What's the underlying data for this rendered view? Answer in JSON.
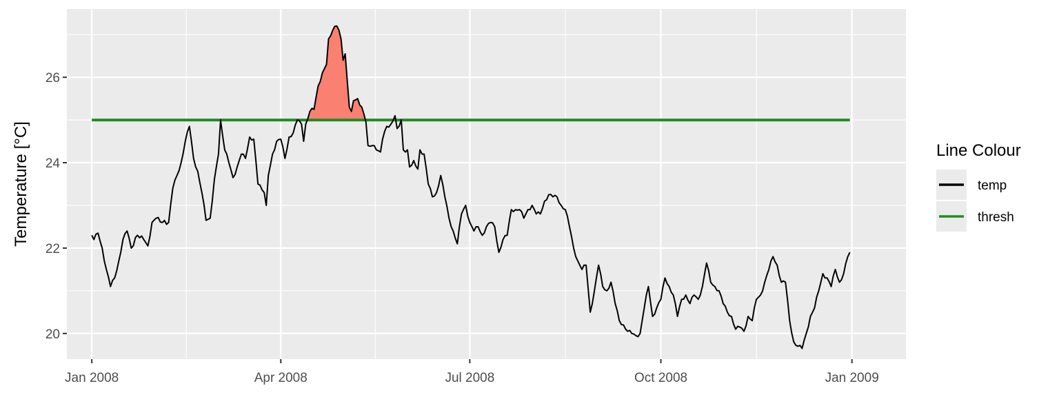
{
  "chart_data": {
    "type": "line",
    "title": "",
    "xlabel": "",
    "ylabel": "Temperature [°C]",
    "x_start": "2008-01-01",
    "x_end": "2008-12-31",
    "xlim": [
      "2007-12-20",
      "2009-01-27"
    ],
    "ylim": [
      19.4,
      27.6
    ],
    "x_ticks": [
      {
        "date": "2008-01-01",
        "label": "Jan 2008"
      },
      {
        "date": "2008-04-01",
        "label": "Apr 2008"
      },
      {
        "date": "2008-07-01",
        "label": "Jul 2008"
      },
      {
        "date": "2008-10-01",
        "label": "Oct 2008"
      },
      {
        "date": "2009-01-01",
        "label": "Jan 2009"
      }
    ],
    "y_ticks": [
      20,
      22,
      24,
      26
    ],
    "grid": true,
    "legend": {
      "title": "Line Colour",
      "position": "right"
    },
    "series": [
      {
        "name": "temp",
        "color": "#000000",
        "knots": [
          [
            "2008-01-01",
            22.3
          ],
          [
            "2008-01-02",
            22.2
          ],
          [
            "2008-01-04",
            22.35
          ],
          [
            "2008-01-06",
            22.0
          ],
          [
            "2008-01-08",
            21.5
          ],
          [
            "2008-01-10",
            21.1
          ],
          [
            "2008-01-12",
            21.3
          ],
          [
            "2008-01-14",
            21.7
          ],
          [
            "2008-01-16",
            22.2
          ],
          [
            "2008-01-18",
            22.4
          ],
          [
            "2008-01-20",
            22.0
          ],
          [
            "2008-01-23",
            22.3
          ],
          [
            "2008-01-26",
            22.2
          ],
          [
            "2008-01-28",
            22.05
          ],
          [
            "2008-01-30",
            22.6
          ],
          [
            "2008-02-01",
            22.7
          ],
          [
            "2008-02-04",
            22.6
          ],
          [
            "2008-02-07",
            22.6
          ],
          [
            "2008-02-09",
            23.4
          ],
          [
            "2008-02-11",
            23.7
          ],
          [
            "2008-02-13",
            24.0
          ],
          [
            "2008-02-15",
            24.5
          ],
          [
            "2008-02-17",
            24.85
          ],
          [
            "2008-02-19",
            24.1
          ],
          [
            "2008-02-21",
            23.8
          ],
          [
            "2008-02-23",
            23.3
          ],
          [
            "2008-02-25",
            22.65
          ],
          [
            "2008-02-27",
            22.7
          ],
          [
            "2008-02-29",
            23.6
          ],
          [
            "2008-03-02",
            24.2
          ],
          [
            "2008-03-03",
            25.0
          ],
          [
            "2008-03-05",
            24.3
          ],
          [
            "2008-03-07",
            24.0
          ],
          [
            "2008-03-09",
            23.65
          ],
          [
            "2008-03-11",
            23.9
          ],
          [
            "2008-03-13",
            24.2
          ],
          [
            "2008-03-15",
            24.1
          ],
          [
            "2008-03-17",
            24.6
          ],
          [
            "2008-03-19",
            24.55
          ],
          [
            "2008-03-21",
            23.5
          ],
          [
            "2008-03-24",
            23.3
          ],
          [
            "2008-03-25",
            23.0
          ],
          [
            "2008-03-26",
            23.7
          ],
          [
            "2008-03-28",
            24.2
          ],
          [
            "2008-03-30",
            24.5
          ],
          [
            "2008-04-01",
            24.55
          ],
          [
            "2008-04-03",
            24.1
          ],
          [
            "2008-04-05",
            24.6
          ],
          [
            "2008-04-07",
            24.7
          ],
          [
            "2008-04-09",
            25.0
          ],
          [
            "2008-04-11",
            24.9
          ],
          [
            "2008-04-12",
            24.5
          ],
          [
            "2008-04-13",
            24.9
          ],
          [
            "2008-04-15",
            25.2
          ],
          [
            "2008-04-17",
            25.25
          ],
          [
            "2008-04-19",
            25.8
          ],
          [
            "2008-04-21",
            26.1
          ],
          [
            "2008-04-23",
            26.3
          ],
          [
            "2008-04-24",
            26.9
          ],
          [
            "2008-04-26",
            27.1
          ],
          [
            "2008-04-28",
            27.2
          ],
          [
            "2008-04-29",
            27.1
          ],
          [
            "2008-04-30",
            26.9
          ],
          [
            "2008-05-01",
            26.4
          ],
          [
            "2008-05-02",
            26.55
          ],
          [
            "2008-05-04",
            25.3
          ],
          [
            "2008-05-05",
            25.2
          ],
          [
            "2008-05-06",
            25.45
          ],
          [
            "2008-05-08",
            25.5
          ],
          [
            "2008-05-10",
            25.3
          ],
          [
            "2008-05-12",
            24.95
          ],
          [
            "2008-05-13",
            24.4
          ],
          [
            "2008-05-15",
            24.4
          ],
          [
            "2008-05-17",
            24.3
          ],
          [
            "2008-05-19",
            24.25
          ],
          [
            "2008-05-20",
            24.55
          ],
          [
            "2008-05-22",
            24.85
          ],
          [
            "2008-05-24",
            24.9
          ],
          [
            "2008-05-26",
            25.1
          ],
          [
            "2008-05-27",
            24.8
          ],
          [
            "2008-05-29",
            25.0
          ],
          [
            "2008-05-30",
            24.3
          ],
          [
            "2008-06-01",
            24.3
          ],
          [
            "2008-06-02",
            23.9
          ],
          [
            "2008-06-04",
            24.05
          ],
          [
            "2008-06-06",
            23.85
          ],
          [
            "2008-06-07",
            24.3
          ],
          [
            "2008-06-09",
            24.2
          ],
          [
            "2008-06-11",
            23.5
          ],
          [
            "2008-06-13",
            23.2
          ],
          [
            "2008-06-15",
            23.3
          ],
          [
            "2008-06-17",
            23.7
          ],
          [
            "2008-06-19",
            23.2
          ],
          [
            "2008-06-21",
            22.7
          ],
          [
            "2008-06-23",
            22.4
          ],
          [
            "2008-06-25",
            22.1
          ],
          [
            "2008-06-27",
            22.8
          ],
          [
            "2008-06-29",
            23.0
          ],
          [
            "2008-07-01",
            22.6
          ],
          [
            "2008-07-03",
            22.4
          ],
          [
            "2008-07-05",
            22.5
          ],
          [
            "2008-07-07",
            22.3
          ],
          [
            "2008-07-09",
            22.5
          ],
          [
            "2008-07-11",
            22.6
          ],
          [
            "2008-07-13",
            22.5
          ],
          [
            "2008-07-15",
            21.9
          ],
          [
            "2008-07-17",
            22.2
          ],
          [
            "2008-07-19",
            22.3
          ],
          [
            "2008-07-21",
            22.9
          ],
          [
            "2008-07-23",
            22.9
          ],
          [
            "2008-07-25",
            22.9
          ],
          [
            "2008-07-27",
            22.7
          ],
          [
            "2008-07-29",
            22.9
          ],
          [
            "2008-07-31",
            23.0
          ],
          [
            "2008-08-02",
            22.8
          ],
          [
            "2008-08-04",
            22.8
          ],
          [
            "2008-08-06",
            23.1
          ],
          [
            "2008-08-08",
            23.25
          ],
          [
            "2008-08-10",
            23.2
          ],
          [
            "2008-08-12",
            23.2
          ],
          [
            "2008-08-14",
            23.0
          ],
          [
            "2008-08-16",
            22.9
          ],
          [
            "2008-08-18",
            22.5
          ],
          [
            "2008-08-20",
            22.0
          ],
          [
            "2008-08-22",
            21.7
          ],
          [
            "2008-08-24",
            21.5
          ],
          [
            "2008-08-26",
            21.6
          ],
          [
            "2008-08-28",
            20.5
          ],
          [
            "2008-08-30",
            21.0
          ],
          [
            "2008-09-01",
            21.6
          ],
          [
            "2008-09-03",
            21.1
          ],
          [
            "2008-09-05",
            21.0
          ],
          [
            "2008-09-07",
            21.2
          ],
          [
            "2008-09-09",
            20.7
          ],
          [
            "2008-09-11",
            20.3
          ],
          [
            "2008-09-13",
            20.2
          ],
          [
            "2008-09-15",
            20.05
          ],
          [
            "2008-09-17",
            20.0
          ],
          [
            "2008-09-19",
            19.95
          ],
          [
            "2008-09-21",
            20.0
          ],
          [
            "2008-09-23",
            20.6
          ],
          [
            "2008-09-25",
            21.1
          ],
          [
            "2008-09-27",
            20.4
          ],
          [
            "2008-09-29",
            20.6
          ],
          [
            "2008-10-01",
            20.8
          ],
          [
            "2008-10-03",
            21.3
          ],
          [
            "2008-10-05",
            21.1
          ],
          [
            "2008-10-07",
            20.9
          ],
          [
            "2008-10-09",
            20.4
          ],
          [
            "2008-10-11",
            20.8
          ],
          [
            "2008-10-13",
            20.9
          ],
          [
            "2008-10-15",
            20.7
          ],
          [
            "2008-10-17",
            20.9
          ],
          [
            "2008-10-19",
            20.8
          ],
          [
            "2008-10-21",
            21.1
          ],
          [
            "2008-10-23",
            21.65
          ],
          [
            "2008-10-25",
            21.2
          ],
          [
            "2008-10-27",
            21.1
          ],
          [
            "2008-10-29",
            21.0
          ],
          [
            "2008-10-31",
            20.7
          ],
          [
            "2008-11-02",
            20.5
          ],
          [
            "2008-11-04",
            20.4
          ],
          [
            "2008-11-06",
            20.1
          ],
          [
            "2008-11-08",
            20.15
          ],
          [
            "2008-11-10",
            20.05
          ],
          [
            "2008-11-12",
            20.4
          ],
          [
            "2008-11-14",
            20.3
          ],
          [
            "2008-11-16",
            20.8
          ],
          [
            "2008-11-18",
            20.9
          ],
          [
            "2008-11-20",
            21.2
          ],
          [
            "2008-11-22",
            21.5
          ],
          [
            "2008-11-24",
            21.8
          ],
          [
            "2008-11-26",
            21.6
          ],
          [
            "2008-11-28",
            21.2
          ],
          [
            "2008-11-30",
            21.2
          ],
          [
            "2008-12-02",
            20.3
          ],
          [
            "2008-12-04",
            19.8
          ],
          [
            "2008-12-06",
            19.7
          ],
          [
            "2008-12-08",
            19.65
          ],
          [
            "2008-12-10",
            20.0
          ],
          [
            "2008-12-12",
            20.4
          ],
          [
            "2008-12-14",
            20.6
          ],
          [
            "2008-12-16",
            21.0
          ],
          [
            "2008-12-18",
            21.4
          ],
          [
            "2008-12-20",
            21.3
          ],
          [
            "2008-12-22",
            21.1
          ],
          [
            "2008-12-24",
            21.5
          ],
          [
            "2008-12-26",
            21.2
          ],
          [
            "2008-12-28",
            21.4
          ],
          [
            "2008-12-30",
            21.8
          ],
          [
            "2008-12-31",
            21.9
          ]
        ]
      },
      {
        "name": "thresh",
        "color": "#228b22",
        "value": 25.0
      }
    ],
    "fill_above_threshold": {
      "color": "#fa8072"
    }
  }
}
